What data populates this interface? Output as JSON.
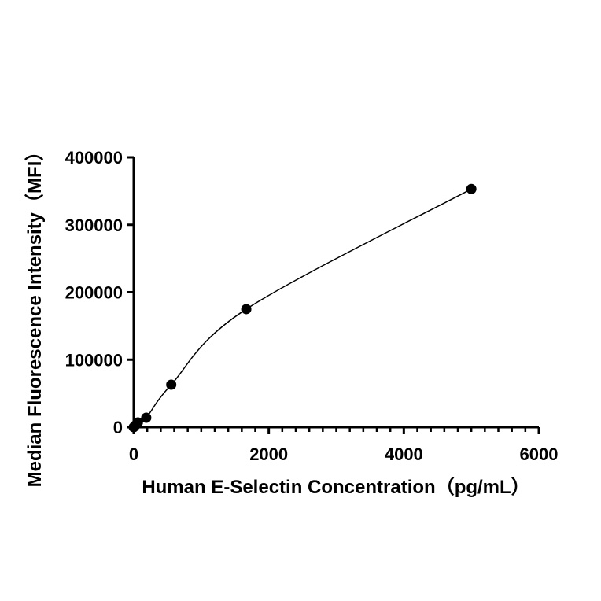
{
  "chart_data": {
    "type": "scatter",
    "title": "",
    "xlabel": "Human E-Selectin Concentration（pg/mL）",
    "ylabel": "Median Fluorescence Intensity（MFI）",
    "xlim": [
      0,
      6000
    ],
    "ylim": [
      0,
      400000
    ],
    "xticks": [
      0,
      2000,
      4000,
      6000
    ],
    "xtick_labels": [
      "0",
      "2000",
      "4000",
      "6000"
    ],
    "x_minor_step": 200,
    "yticks": [
      0,
      100000,
      200000,
      300000,
      400000
    ],
    "ytick_labels": [
      "0",
      "100000",
      "200000",
      "300000",
      "400000"
    ],
    "grid": false,
    "fit_curve": true,
    "marker_color": "#000000",
    "points": [
      {
        "x": 0,
        "y": 0
      },
      {
        "x": 20.6,
        "y": 2500
      },
      {
        "x": 61.7,
        "y": 7000
      },
      {
        "x": 185.2,
        "y": 14000
      },
      {
        "x": 555.6,
        "y": 63000
      },
      {
        "x": 1666.7,
        "y": 175000
      },
      {
        "x": 5000,
        "y": 353000
      }
    ]
  }
}
